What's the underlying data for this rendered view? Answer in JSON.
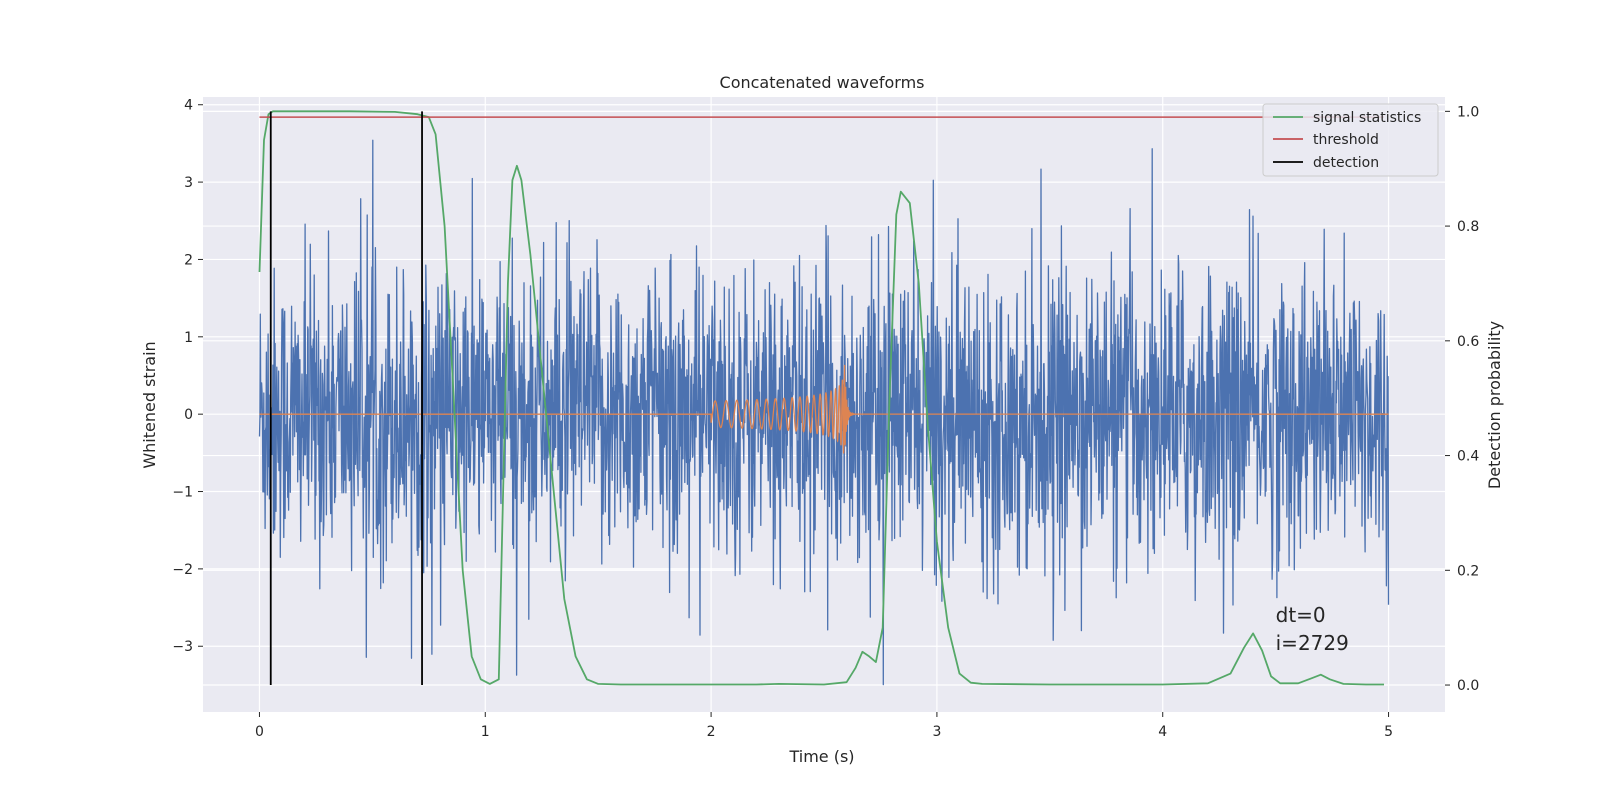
{
  "chart_data": {
    "type": "line",
    "title": "Concatenated waveforms",
    "xlabel": "Time (s)",
    "ylabel": "Whitened strain",
    "y2label": "Detection probability",
    "xlim": [
      -0.25,
      5.25
    ],
    "ylim": [
      -3.85,
      4.1
    ],
    "y2lim": [
      -0.047,
      1.025
    ],
    "x_ticks": [
      0,
      1,
      2,
      3,
      4,
      5
    ],
    "x_tick_labels": [
      "0",
      "1",
      "2",
      "3",
      "4",
      "5"
    ],
    "y_ticks": [
      -3,
      -2,
      -1,
      0,
      1,
      2,
      3,
      4
    ],
    "y_tick_labels": [
      "−3",
      "−2",
      "−1",
      "0",
      "1",
      "2",
      "3",
      "4"
    ],
    "y2_ticks": [
      0.0,
      0.2,
      0.4,
      0.6,
      0.8,
      1.0
    ],
    "y2_tick_labels": [
      "0.0",
      "0.2",
      "0.4",
      "0.6",
      "0.8",
      "1.0"
    ],
    "grid": true,
    "legend_position": "top-right",
    "series": [
      {
        "name": "signal statistics",
        "axis": "right",
        "color": "#55a868",
        "x": [
          0.0,
          0.02,
          0.04,
          0.06,
          0.1,
          0.2,
          0.4,
          0.6,
          0.7,
          0.75,
          0.78,
          0.82,
          0.86,
          0.9,
          0.94,
          0.98,
          1.02,
          1.06,
          1.1,
          1.12,
          1.14,
          1.16,
          1.2,
          1.25,
          1.3,
          1.35,
          1.4,
          1.45,
          1.5,
          1.6,
          1.8,
          2.0,
          2.2,
          2.3,
          2.5,
          2.6,
          2.64,
          2.67,
          2.7,
          2.73,
          2.76,
          2.79,
          2.82,
          2.84,
          2.88,
          2.92,
          2.96,
          3.0,
          3.05,
          3.1,
          3.15,
          3.2,
          3.5,
          3.8,
          4.0,
          4.2,
          4.3,
          4.36,
          4.4,
          4.44,
          4.48,
          4.52,
          4.6,
          4.66,
          4.7,
          4.74,
          4.8,
          4.9,
          4.98
        ],
        "values": [
          0.72,
          0.95,
          0.995,
          1.0,
          1.0,
          1.0,
          1.0,
          0.999,
          0.995,
          0.99,
          0.96,
          0.8,
          0.5,
          0.2,
          0.05,
          0.01,
          0.002,
          0.01,
          0.7,
          0.88,
          0.905,
          0.88,
          0.75,
          0.55,
          0.35,
          0.15,
          0.05,
          0.01,
          0.002,
          0.001,
          0.001,
          0.001,
          0.001,
          0.002,
          0.001,
          0.005,
          0.03,
          0.058,
          0.05,
          0.04,
          0.1,
          0.5,
          0.82,
          0.86,
          0.84,
          0.7,
          0.45,
          0.25,
          0.1,
          0.02,
          0.004,
          0.002,
          0.001,
          0.001,
          0.001,
          0.003,
          0.02,
          0.065,
          0.09,
          0.06,
          0.015,
          0.003,
          0.003,
          0.012,
          0.018,
          0.01,
          0.002,
          0.001,
          0.001
        ]
      },
      {
        "name": "threshold",
        "axis": "right",
        "color": "#c44e52",
        "x": [
          0.0,
          4.98
        ],
        "values": [
          0.99,
          0.99
        ]
      },
      {
        "name": "detection",
        "axis": "right",
        "color": "#000000",
        "x_positions": [
          0.05,
          0.72
        ],
        "y_range": [
          0.0,
          1.0
        ]
      }
    ],
    "background_series": [
      {
        "label": "whitened strain noise",
        "axis": "left",
        "color": "#4c72b0",
        "x_range": [
          0.0,
          5.0
        ],
        "typical_amplitude": 1.5,
        "peak_amplitude": 3.75
      },
      {
        "label": "injected chirp",
        "axis": "left",
        "color": "#dd8452",
        "x_range": [
          2.0,
          2.65
        ],
        "chirp_start": 2.0,
        "merger_time": 2.59,
        "peak_amplitude": 0.75
      }
    ],
    "annotations": [
      "dt=0",
      "i=2729"
    ],
    "annotation_anchor": {
      "x": 4.5,
      "y2": 0.11
    }
  }
}
